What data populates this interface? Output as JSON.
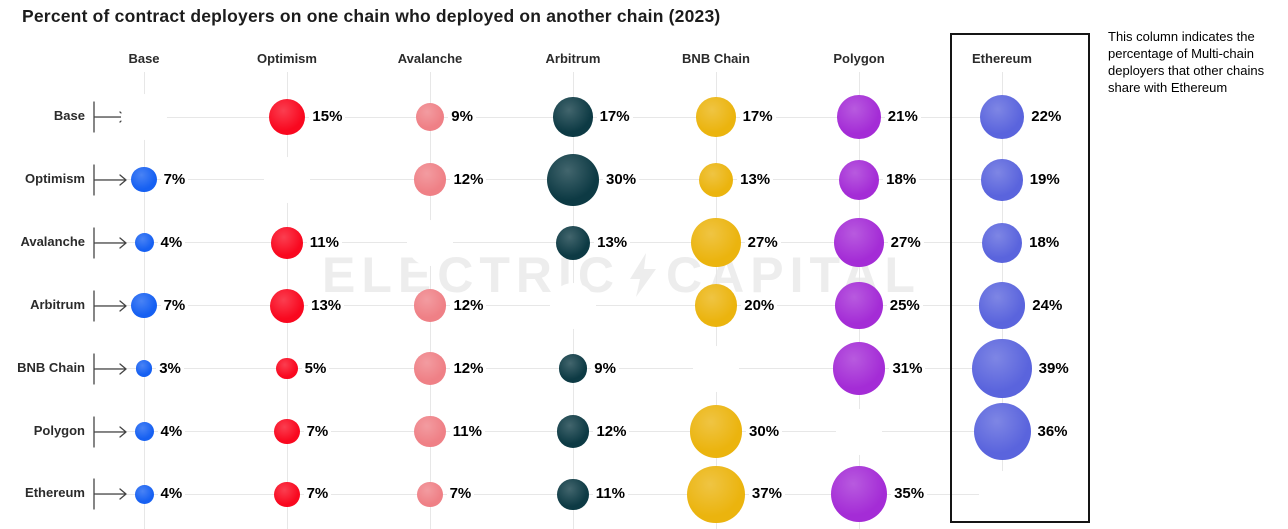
{
  "page": {
    "watermark_left": "ELECTRIC",
    "watermark_right": "CAPITAL"
  },
  "chart_data": {
    "type": "heatmap",
    "subtype": "bubble-matrix",
    "title": "Percent of contract deployers on one chain who deployed on another chain (2023)",
    "unit": "%",
    "columns": [
      "Base",
      "Optimism",
      "Avalanche",
      "Arbitrum",
      "BNB Chain",
      "Polygon",
      "Ethereum"
    ],
    "rows": [
      "Base",
      "Optimism",
      "Avalanche",
      "Arbitrum",
      "BNB Chain",
      "Polygon",
      "Ethereum"
    ],
    "column_colors": [
      "#1660f2",
      "#f9081f",
      "#ef8086",
      "#0d3a44",
      "#ebb40e",
      "#a42cd6",
      "#5a64dd"
    ],
    "values_percent": [
      [
        null,
        15,
        9,
        17,
        17,
        21,
        22
      ],
      [
        7,
        null,
        12,
        30,
        13,
        18,
        19
      ],
      [
        4,
        11,
        null,
        13,
        27,
        27,
        18
      ],
      [
        7,
        13,
        12,
        null,
        20,
        25,
        24
      ],
      [
        3,
        5,
        12,
        9,
        null,
        31,
        39
      ],
      [
        4,
        7,
        11,
        12,
        30,
        null,
        36
      ],
      [
        4,
        7,
        7,
        11,
        37,
        35,
        null
      ]
    ],
    "highlighted_column": "Ethereum",
    "annotation": "This column indicates the percentage of Multi-chain deployers that other chains share with Ethereum",
    "grid": true,
    "legend_position": "none"
  }
}
